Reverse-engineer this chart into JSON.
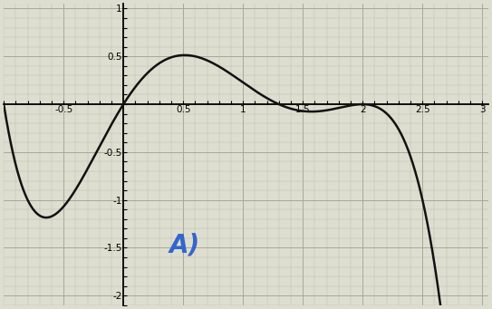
{
  "title": "A)",
  "title_color": "#3366cc",
  "title_fontsize": 20,
  "title_fontstyle": "italic",
  "title_fontweight": "bold",
  "xlim": [
    -1.0,
    3.05
  ],
  "ylim": [
    -2.05,
    1.05
  ],
  "background_color": "#deded0",
  "curve_color": "#111111",
  "curve_lw": 1.8,
  "minor_grid_color": "#c0c0b0",
  "major_grid_color": "#a8a898",
  "label_fontsize": 7.5
}
